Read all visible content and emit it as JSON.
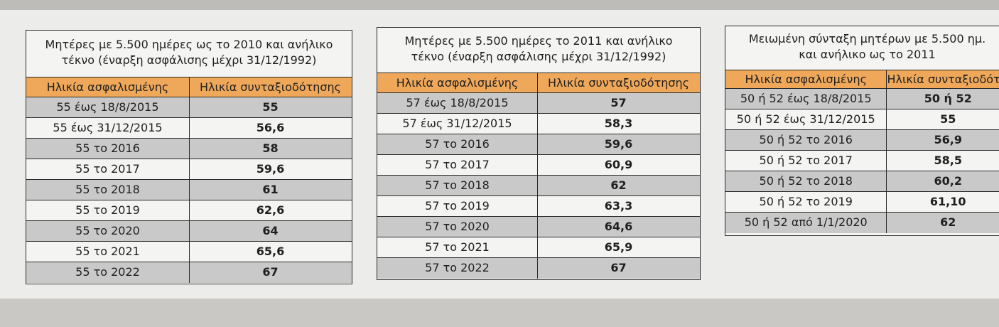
{
  "tables": [
    {
      "title_line1": "Μητέρες με 5.500 ημέρες ως το 2010 και ανήλικο",
      "title_line2": "τέκνο (έναρξη ασφάλισης μέχρι 31/12/1992)",
      "col1_header": "Ηλικία ασφαλισμένης",
      "col2_header": "Ηλικία συνταξιοδότησης",
      "rows": [
        {
          "age": "55 έως 18/8/2015",
          "pension_age": "55"
        },
        {
          "age": "55 έως 31/12/2015",
          "pension_age": "56,6"
        },
        {
          "age": "55 το 2016",
          "pension_age": "58"
        },
        {
          "age": "55 το 2017",
          "pension_age": "59,6"
        },
        {
          "age": "55 το 2018",
          "pension_age": "61"
        },
        {
          "age": "55 το 2019",
          "pension_age": "62,6"
        },
        {
          "age": "55 το 2020",
          "pension_age": "64"
        },
        {
          "age": "55 το 2021",
          "pension_age": "65,6"
        },
        {
          "age": "55 το 2022",
          "pension_age": "67"
        }
      ]
    },
    {
      "title_line1": "Μητέρες με 5.500 ημέρες το 2011 και ανήλικο",
      "title_line2": "τέκνο (έναρξη ασφάλισης μέχρι 31/12/1992)",
      "col1_header": "Ηλικία ασφαλισμένης",
      "col2_header": "Ηλικία συνταξιοδότησης",
      "rows": [
        {
          "age": "57 έως 18/8/2015",
          "pension_age": "57"
        },
        {
          "age": "57 έως 31/12/2015",
          "pension_age": "58,3"
        },
        {
          "age": "57 το 2016",
          "pension_age": "59,6"
        },
        {
          "age": "57 το 2017",
          "pension_age": "60,9"
        },
        {
          "age": "57 το 2018",
          "pension_age": "62"
        },
        {
          "age": "57 το 2019",
          "pension_age": "63,3"
        },
        {
          "age": "57 το 2020",
          "pension_age": "64,6"
        },
        {
          "age": "57 το 2021",
          "pension_age": "65,9"
        },
        {
          "age": "57 το 2022",
          "pension_age": "67"
        }
      ]
    },
    {
      "title_line1": "Μειωμένη σύνταξη μητέρων με 5.500 ημ.",
      "title_line2": "και ανήλικο ως το 2011",
      "col1_header": "Ηλικία ασφαλισμένης",
      "col2_header": "Ηλικία συνταξιοδότησης",
      "rows": [
        {
          "age": "50 ή 52 έως 18/8/2015",
          "pension_age": "50 ή 52"
        },
        {
          "age": "50 ή 52 έως 31/12/2015",
          "pension_age": "55"
        },
        {
          "age": "50 ή 52 το 2016",
          "pension_age": "56,9"
        },
        {
          "age": "50 ή 52 το 2017",
          "pension_age": "58,5"
        },
        {
          "age": "50 ή 52 το 2018",
          "pension_age": "60,2"
        },
        {
          "age": "50 ή 52 το 2019",
          "pension_age": "61,10"
        },
        {
          "age": "50 ή 52 από 1/1/2020",
          "pension_age": "62"
        }
      ]
    }
  ],
  "colors": {
    "header_orange": "#efa85a",
    "row_shade": "#c9c9c9",
    "border": "#2a2a2a"
  }
}
